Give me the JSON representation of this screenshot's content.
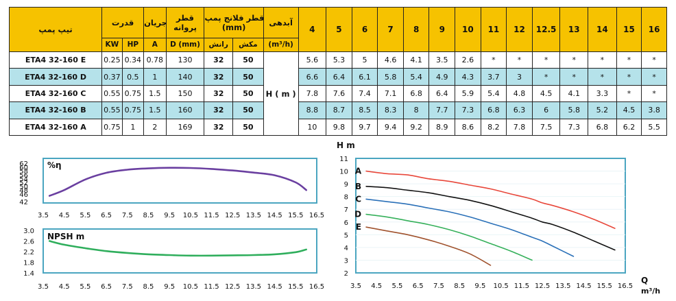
{
  "table": {
    "head_type": "تیپ پمپ",
    "head_power": "قدرت",
    "head_current": "جریان",
    "head_impeller_l1": "قطر",
    "head_impeller_l2": "پروانه",
    "head_flange_l1": "قطر فلانج پمپ",
    "head_flange_l2": "(mm)",
    "head_flow": "آبدهی",
    "sub_kw": "KW",
    "sub_hp": "HP",
    "sub_a": "A",
    "sub_d": "D (mm)",
    "sub_discharge": "رانش",
    "sub_suction": "مکش",
    "sub_flow_unit": "(m³/h)",
    "head_label": "H ( m )",
    "q_values": [
      "4",
      "5",
      "6",
      "7",
      "8",
      "9",
      "10",
      "11",
      "12",
      "12.5",
      "13",
      "14",
      "15",
      "16"
    ],
    "rows": [
      {
        "model": "ETA4 32-160 E",
        "kw": "0.25",
        "hp": "0.34",
        "a": "0.78",
        "d": "130",
        "discharge": "32",
        "suction": "50",
        "h": [
          "5.6",
          "5.3",
          "5",
          "4.6",
          "4.1",
          "3.5",
          "2.6",
          "*",
          "*",
          "*",
          "*",
          "*",
          "*",
          "*"
        ]
      },
      {
        "model": "ETA4 32-160 D",
        "kw": "0.37",
        "hp": "0.5",
        "a": "1",
        "d": "140",
        "discharge": "32",
        "suction": "50",
        "h": [
          "6.6",
          "6.4",
          "6.1",
          "5.8",
          "5.4",
          "4.9",
          "4.3",
          "3.7",
          "3",
          "*",
          "*",
          "*",
          "*",
          "*"
        ]
      },
      {
        "model": "ETA4 32-160 C",
        "kw": "0.55",
        "hp": "0.75",
        "a": "1.5",
        "d": "150",
        "discharge": "32",
        "suction": "50",
        "h": [
          "7.8",
          "7.6",
          "7.4",
          "7.1",
          "6.8",
          "6.4",
          "5.9",
          "5.4",
          "4.8",
          "4.5",
          "4.1",
          "3.3",
          "*",
          "*"
        ]
      },
      {
        "model": "ETA4 32-160 B",
        "kw": "0.55",
        "hp": "0.75",
        "a": "1.5",
        "d": "160",
        "discharge": "32",
        "suction": "50",
        "h": [
          "8.8",
          "8.7",
          "8.5",
          "8.3",
          "8",
          "7.7",
          "7.3",
          "6.8",
          "6.3",
          "6",
          "5.8",
          "5.2",
          "4.5",
          "3.8"
        ]
      },
      {
        "model": "ETA4 32-160 A",
        "kw": "0.75",
        "hp": "1",
        "a": "2",
        "d": "169",
        "discharge": "32",
        "suction": "50",
        "h": [
          "10",
          "9.8",
          "9.7",
          "9.4",
          "9.2",
          "8.9",
          "8.6",
          "8.2",
          "7.8",
          "7.5",
          "7.3",
          "6.8",
          "6.2",
          "5.5"
        ]
      }
    ]
  },
  "chart_data": [
    {
      "type": "line",
      "title": "%η",
      "xlim": [
        3.5,
        16.5
      ],
      "ylim": [
        42,
        62
      ],
      "xticks": [
        "3.5",
        "4.5",
        "5.5",
        "6.5",
        "7.5",
        "8.5",
        "9.5",
        "10.5",
        "11.5",
        "12.5",
        "13.5",
        "14.5",
        "15.5",
        "16.5"
      ],
      "yticks": [
        "62",
        "58",
        "54",
        "50",
        "46",
        "42"
      ],
      "yticks_minor": [
        "60",
        "56",
        "52",
        "48"
      ],
      "series": [
        {
          "color": "#6a3fa0",
          "x": [
            3.8,
            4.5,
            5.5,
            6.5,
            7.5,
            8.5,
            9.5,
            10.5,
            11.5,
            12.5,
            13.5,
            14.5,
            15.5,
            16
          ],
          "y": [
            45,
            48,
            53.5,
            57,
            58.6,
            59.3,
            59.6,
            59.5,
            59,
            58.2,
            57.1,
            55.7,
            52,
            48
          ]
        }
      ]
    },
    {
      "type": "line",
      "title": "NPSH m",
      "xlim": [
        3.5,
        16.5
      ],
      "ylim": [
        1.4,
        3.0
      ],
      "xticks": [
        "3.5",
        "4.5",
        "5.5",
        "6.5",
        "7.5",
        "8.5",
        "9.5",
        "10.5",
        "11.5",
        "12.5",
        "13.5",
        "14.5",
        "15.5",
        "16.5"
      ],
      "yticks": [
        "3.0",
        "2.6",
        "2.2",
        "1.8",
        "1.4"
      ],
      "series": [
        {
          "color": "#2fae5c",
          "x": [
            3.8,
            4.5,
            5.5,
            6.5,
            7.5,
            8.5,
            9.5,
            10.5,
            11.5,
            12.5,
            13.5,
            14.5,
            15.5,
            16
          ],
          "y": [
            2.6,
            2.46,
            2.33,
            2.22,
            2.15,
            2.1,
            2.07,
            2.05,
            2.05,
            2.06,
            2.07,
            2.1,
            2.18,
            2.28
          ]
        }
      ]
    },
    {
      "type": "line",
      "title": "H m",
      "xlabel_l1": "Q",
      "xlabel_l2": "m³/h",
      "xlim": [
        3.5,
        16.5
      ],
      "ylim": [
        2,
        11
      ],
      "xticks": [
        "3.5",
        "4.5",
        "5.5",
        "6.5",
        "7.5",
        "8.5",
        "9.5",
        "10.5",
        "11.5",
        "12.5",
        "13.5",
        "14.5",
        "15.5",
        "16.5"
      ],
      "yticks": [
        "11",
        "10",
        "9",
        "8",
        "7",
        "6",
        "5",
        "4",
        "3",
        "2"
      ],
      "series": [
        {
          "name": "A",
          "color": "#e8473a",
          "x": [
            4,
            5,
            6,
            7,
            8,
            9,
            10,
            11,
            12,
            12.5,
            13,
            14,
            15,
            16
          ],
          "y": [
            10,
            9.8,
            9.7,
            9.4,
            9.2,
            8.9,
            8.6,
            8.2,
            7.8,
            7.5,
            7.3,
            6.8,
            6.2,
            5.5
          ]
        },
        {
          "name": "B",
          "color": "#111111",
          "x": [
            4,
            5,
            6,
            7,
            8,
            9,
            10,
            11,
            12,
            12.5,
            13,
            14,
            15,
            16
          ],
          "y": [
            8.8,
            8.7,
            8.5,
            8.3,
            8,
            7.7,
            7.3,
            6.8,
            6.3,
            6,
            5.8,
            5.2,
            4.5,
            3.8
          ]
        },
        {
          "name": "C",
          "color": "#2a70b8",
          "x": [
            4,
            5,
            6,
            7,
            8,
            9,
            10,
            11,
            12,
            12.5,
            13,
            14
          ],
          "y": [
            7.8,
            7.6,
            7.4,
            7.1,
            6.8,
            6.4,
            5.9,
            5.4,
            4.8,
            4.5,
            4.1,
            3.3
          ]
        },
        {
          "name": "D",
          "color": "#35b05a",
          "x": [
            4,
            5,
            6,
            7,
            8,
            9,
            10,
            11,
            12
          ],
          "y": [
            6.6,
            6.4,
            6.1,
            5.8,
            5.4,
            4.9,
            4.3,
            3.7,
            3
          ]
        },
        {
          "name": "E",
          "color": "#a0522d",
          "x": [
            4,
            5,
            6,
            7,
            8,
            9,
            10
          ],
          "y": [
            5.6,
            5.3,
            5,
            4.6,
            4.1,
            3.5,
            2.6
          ]
        }
      ]
    }
  ]
}
